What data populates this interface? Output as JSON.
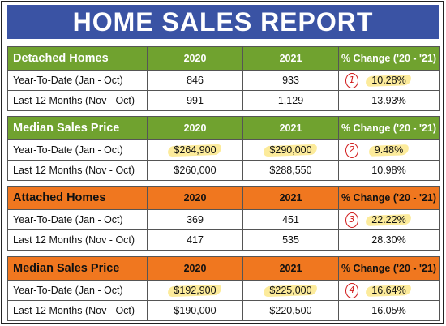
{
  "title": "HOME SALES REPORT",
  "sections": [
    {
      "title": "Detached Homes",
      "color": "#70a22f",
      "col2020": "2020",
      "col2021": "2021",
      "colChange": "% Change ('20 - '21)",
      "rows": [
        {
          "label": "Year-To-Date (Jan - Oct)",
          "v2020": "846",
          "v2021": "933",
          "change": "10.28%",
          "marker": "1",
          "highlight": true
        },
        {
          "label": "Last 12 Months (Nov - Oct)",
          "v2020": "991",
          "v2021": "1,129",
          "change": "13.93%"
        }
      ]
    },
    {
      "title": "Median Sales Price",
      "color": "#70a22f",
      "col2020": "2020",
      "col2021": "2021",
      "colChange": "% Change ('20 - '21)",
      "rows": [
        {
          "label": "Year-To-Date (Jan - Oct)",
          "v2020": "$264,900",
          "v2021": "$290,000",
          "change": "9.48%",
          "marker": "2",
          "highlight": true
        },
        {
          "label": "Last 12 Months (Nov - Oct)",
          "v2020": "$260,000",
          "v2021": "$288,550",
          "change": "10.98%"
        }
      ]
    },
    {
      "title": "Attached Homes",
      "color": "#f0771f",
      "col2020": "2020",
      "col2021": "2021",
      "colChange": "% Change ('20 - '21)",
      "rows": [
        {
          "label": "Year-To-Date (Jan - Oct)",
          "v2020": "369",
          "v2021": "451",
          "change": "22.22%",
          "marker": "3",
          "highlight": true
        },
        {
          "label": "Last 12 Months (Nov - Oct)",
          "v2020": "417",
          "v2021": "535",
          "change": "28.30%"
        }
      ]
    },
    {
      "title": "Median Sales Price",
      "color": "#f0771f",
      "col2020": "2020",
      "col2021": "2021",
      "colChange": "% Change ('20 - '21)",
      "rows": [
        {
          "label": "Year-To-Date (Jan - Oct)",
          "v2020": "$192,900",
          "v2021": "$225,000",
          "change": "16.64%",
          "marker": "4",
          "highlight": true
        },
        {
          "label": "Last 12 Months (Nov - Oct)",
          "v2020": "$190,000",
          "v2021": "$220,500",
          "change": "16.05%"
        }
      ]
    }
  ]
}
